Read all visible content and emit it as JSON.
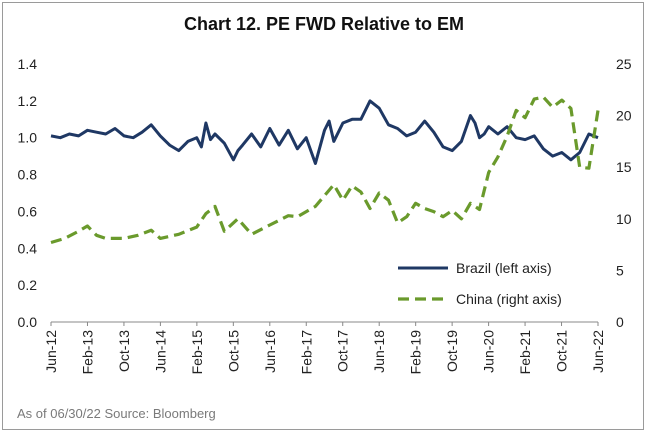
{
  "chart_data": {
    "type": "line",
    "title": "Chart 12. PE FWD Relative to EM",
    "source_note": "As of 06/30/22 Source: Bloomberg",
    "x_tick_labels": [
      "Jun-12",
      "Feb-13",
      "Oct-13",
      "Jun-14",
      "Feb-15",
      "Oct-15",
      "Jun-16",
      "Feb-17",
      "Oct-17",
      "Jun-18",
      "Feb-19",
      "Oct-19",
      "Jun-20",
      "Feb-21",
      "Oct-21",
      "Jun-22"
    ],
    "x_start": "2012-06-30",
    "x_end": "2022-06-30",
    "y_left": {
      "min": 0.0,
      "max": 1.4,
      "ticks": [
        "0.0",
        "0.2",
        "0.4",
        "0.6",
        "0.8",
        "1.0",
        "1.2",
        "1.4"
      ]
    },
    "y_right": {
      "min": 0,
      "max": 25,
      "ticks": [
        "0",
        "5",
        "10",
        "15",
        "20",
        "25"
      ]
    },
    "grid": false,
    "legend_position": "bottom-right",
    "series": [
      {
        "name": "Brazil (left axis)",
        "axis": "left",
        "color": "#1f3864",
        "style": "solid",
        "points": [
          [
            "2012-06-30",
            1.01
          ],
          [
            "2012-08-31",
            1.0
          ],
          [
            "2012-10-31",
            1.02
          ],
          [
            "2012-12-31",
            1.01
          ],
          [
            "2013-02-28",
            1.04
          ],
          [
            "2013-04-30",
            1.03
          ],
          [
            "2013-06-30",
            1.02
          ],
          [
            "2013-08-31",
            1.05
          ],
          [
            "2013-10-31",
            1.01
          ],
          [
            "2013-12-31",
            1.0
          ],
          [
            "2014-02-28",
            1.03
          ],
          [
            "2014-04-30",
            1.07
          ],
          [
            "2014-06-30",
            1.01
          ],
          [
            "2014-08-31",
            0.96
          ],
          [
            "2014-10-31",
            0.93
          ],
          [
            "2014-12-31",
            0.98
          ],
          [
            "2015-02-28",
            1.0
          ],
          [
            "2015-03-31",
            0.95
          ],
          [
            "2015-04-30",
            1.08
          ],
          [
            "2015-05-31",
            0.99
          ],
          [
            "2015-06-30",
            1.02
          ],
          [
            "2015-08-31",
            0.97
          ],
          [
            "2015-10-31",
            0.88
          ],
          [
            "2015-11-30",
            0.93
          ],
          [
            "2015-12-31",
            0.96
          ],
          [
            "2016-02-29",
            1.02
          ],
          [
            "2016-04-30",
            0.95
          ],
          [
            "2016-06-30",
            1.05
          ],
          [
            "2016-08-31",
            0.96
          ],
          [
            "2016-10-31",
            1.04
          ],
          [
            "2016-12-31",
            0.94
          ],
          [
            "2017-02-28",
            1.0
          ],
          [
            "2017-04-30",
            0.86
          ],
          [
            "2017-06-30",
            1.04
          ],
          [
            "2017-07-31",
            1.09
          ],
          [
            "2017-08-31",
            0.98
          ],
          [
            "2017-10-31",
            1.08
          ],
          [
            "2017-12-31",
            1.1
          ],
          [
            "2018-02-28",
            1.1
          ],
          [
            "2018-04-30",
            1.2
          ],
          [
            "2018-06-30",
            1.16
          ],
          [
            "2018-08-31",
            1.07
          ],
          [
            "2018-10-31",
            1.05
          ],
          [
            "2018-12-31",
            1.01
          ],
          [
            "2019-02-28",
            1.03
          ],
          [
            "2019-04-30",
            1.09
          ],
          [
            "2019-06-30",
            1.03
          ],
          [
            "2019-08-31",
            0.95
          ],
          [
            "2019-10-31",
            0.93
          ],
          [
            "2019-12-31",
            0.98
          ],
          [
            "2020-02-29",
            1.12
          ],
          [
            "2020-03-31",
            1.08
          ],
          [
            "2020-04-30",
            1.0
          ],
          [
            "2020-05-31",
            1.02
          ],
          [
            "2020-06-30",
            1.06
          ],
          [
            "2020-08-31",
            1.02
          ],
          [
            "2020-10-31",
            1.06
          ],
          [
            "2020-12-31",
            1.0
          ],
          [
            "2021-02-28",
            0.99
          ],
          [
            "2021-04-30",
            1.01
          ],
          [
            "2021-06-30",
            0.94
          ],
          [
            "2021-08-31",
            0.9
          ],
          [
            "2021-10-31",
            0.92
          ],
          [
            "2021-12-31",
            0.88
          ],
          [
            "2022-02-28",
            0.92
          ],
          [
            "2022-04-30",
            1.02
          ],
          [
            "2022-06-30",
            1.0
          ]
        ]
      },
      {
        "name": "China (right axis)",
        "axis": "right",
        "color": "#6a9a2c",
        "style": "dashed",
        "points": [
          [
            "2012-06-30",
            7.7
          ],
          [
            "2012-09-30",
            8.1
          ],
          [
            "2012-12-31",
            8.8
          ],
          [
            "2013-02-28",
            9.3
          ],
          [
            "2013-04-30",
            8.4
          ],
          [
            "2013-06-30",
            8.1
          ],
          [
            "2013-10-31",
            8.1
          ],
          [
            "2014-01-31",
            8.4
          ],
          [
            "2014-04-30",
            8.9
          ],
          [
            "2014-06-30",
            8.1
          ],
          [
            "2014-10-31",
            8.5
          ],
          [
            "2015-02-28",
            9.2
          ],
          [
            "2015-04-30",
            10.5
          ],
          [
            "2015-06-30",
            11.2
          ],
          [
            "2015-08-31",
            8.8
          ],
          [
            "2015-11-30",
            10.0
          ],
          [
            "2016-02-29",
            8.5
          ],
          [
            "2016-06-30",
            9.4
          ],
          [
            "2016-10-31",
            10.3
          ],
          [
            "2016-12-31",
            10.2
          ],
          [
            "2017-04-30",
            11.2
          ],
          [
            "2017-08-31",
            13.3
          ],
          [
            "2017-10-31",
            11.8
          ],
          [
            "2017-12-31",
            13.2
          ],
          [
            "2018-02-28",
            12.6
          ],
          [
            "2018-04-30",
            11.0
          ],
          [
            "2018-06-30",
            12.5
          ],
          [
            "2018-08-31",
            11.8
          ],
          [
            "2018-10-31",
            9.6
          ],
          [
            "2018-12-31",
            10.2
          ],
          [
            "2019-02-28",
            11.5
          ],
          [
            "2019-04-30",
            11.0
          ],
          [
            "2019-06-30",
            10.7
          ],
          [
            "2019-08-31",
            10.2
          ],
          [
            "2019-10-31",
            10.8
          ],
          [
            "2019-12-31",
            10.0
          ],
          [
            "2020-02-29",
            11.5
          ],
          [
            "2020-04-30",
            10.9
          ],
          [
            "2020-06-30",
            14.5
          ],
          [
            "2020-08-31",
            16.0
          ],
          [
            "2020-10-31",
            18.0
          ],
          [
            "2020-12-31",
            20.5
          ],
          [
            "2021-02-28",
            19.8
          ],
          [
            "2021-04-30",
            21.6
          ],
          [
            "2021-06-30",
            21.8
          ],
          [
            "2021-08-31",
            20.8
          ],
          [
            "2021-10-31",
            21.5
          ],
          [
            "2021-12-31",
            20.7
          ],
          [
            "2022-02-28",
            15.0
          ],
          [
            "2022-04-30",
            14.9
          ],
          [
            "2022-06-30",
            20.5
          ]
        ]
      }
    ]
  }
}
